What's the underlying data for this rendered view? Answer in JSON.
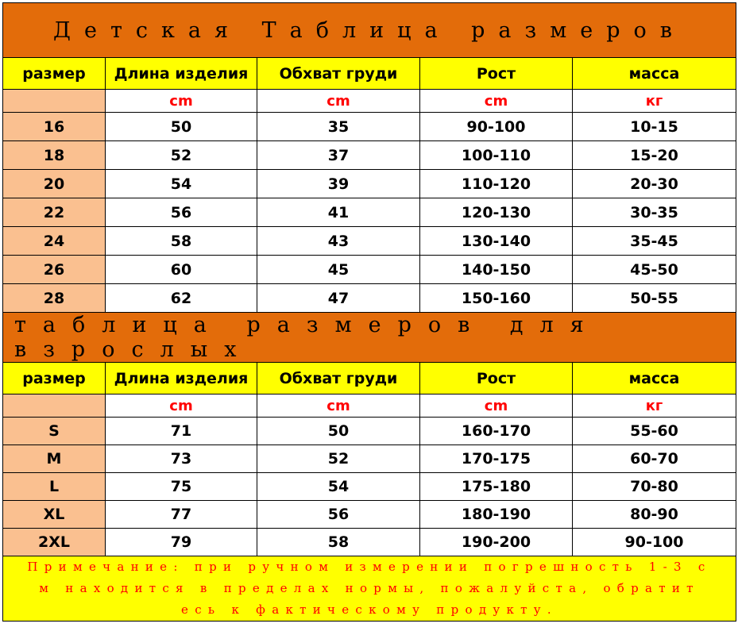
{
  "kids": {
    "title": "Детская Таблица размеров",
    "headers": [
      "размер",
      "Длина изделия",
      "Обхват груди",
      "Рост",
      "масса"
    ],
    "units": [
      "",
      "cm",
      "cm",
      "cm",
      "кг"
    ],
    "rows": [
      [
        "16",
        "50",
        "35",
        "90-100",
        "10-15"
      ],
      [
        "18",
        "52",
        "37",
        "100-110",
        "15-20"
      ],
      [
        "20",
        "54",
        "39",
        "110-120",
        "20-30"
      ],
      [
        "22",
        "56",
        "41",
        "120-130",
        "30-35"
      ],
      [
        "24",
        "58",
        "43",
        "130-140",
        "35-45"
      ],
      [
        "26",
        "60",
        "45",
        "140-150",
        "45-50"
      ],
      [
        "28",
        "62",
        "47",
        "150-160",
        "50-55"
      ]
    ]
  },
  "adults": {
    "title": "таблица размеров для взрослых",
    "headers": [
      "размер",
      "Длина изделия",
      "Обхват груди",
      "Рост",
      "масса"
    ],
    "units": [
      "",
      "cm",
      "cm",
      "cm",
      "кг"
    ],
    "rows": [
      [
        "S",
        "71",
        "50",
        "160-170",
        "55-60"
      ],
      [
        "M",
        "73",
        "52",
        "170-175",
        "60-70"
      ],
      [
        "L",
        "75",
        "54",
        "175-180",
        "70-80"
      ],
      [
        "XL",
        "77",
        "56",
        "180-190",
        "80-90"
      ],
      [
        "2XL",
        "79",
        "58",
        "190-200",
        "90-100"
      ]
    ]
  },
  "note": {
    "lines": [
      "Примечание: при ручном измерении погрешность 1-3 с",
      "м находится в пределах нормы, пожалуйста, обратит",
      "есь к фактическому продукту."
    ]
  },
  "colors": {
    "title_bg": "#e36c0a",
    "header_bg": "#ffff00",
    "size_col_bg": "#fac090",
    "unit_text": "#ff0000"
  }
}
